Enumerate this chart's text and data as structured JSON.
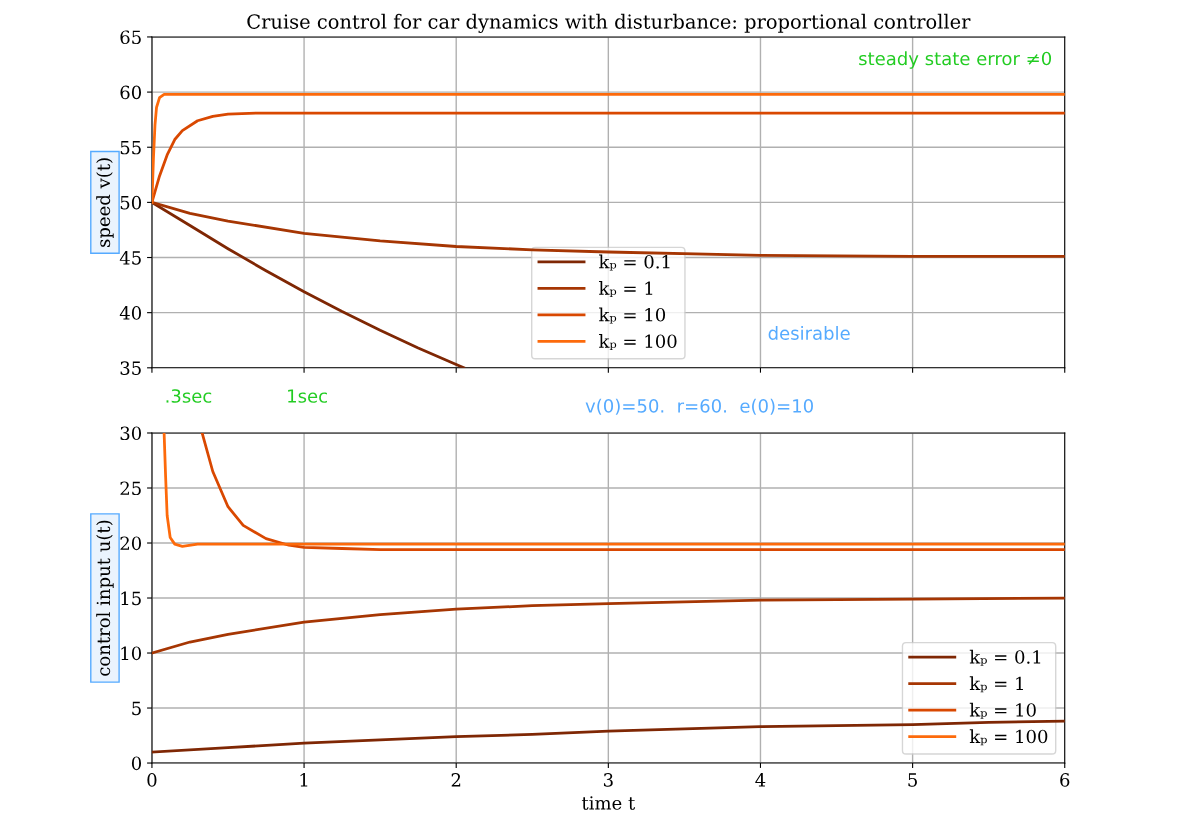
{
  "chart_data": [
    {
      "type": "line",
      "title": "Cruise control for car dynamics with disturbance: proportional controller",
      "ylabel": "speed v(t)",
      "xlim": [
        0,
        6
      ],
      "ylim": [
        35,
        65
      ],
      "xticks": [
        0,
        1,
        2,
        3,
        4,
        5,
        6
      ],
      "yticks": [
        35,
        40,
        45,
        50,
        55,
        60,
        65
      ],
      "tick_labels": "y",
      "grid": true,
      "legend": "bottom",
      "series": [
        {
          "name": "kₚ = 0.1",
          "color": "#7f2704",
          "x": [
            0,
            0.25,
            0.5,
            0.75,
            1,
            1.25,
            1.5,
            1.75,
            2,
            2.05
          ],
          "values": [
            50,
            47.9,
            45.8,
            43.8,
            41.9,
            40.1,
            38.4,
            36.8,
            35.3,
            35.0
          ]
        },
        {
          "name": "kₚ = 1",
          "color": "#a63603",
          "x": [
            0,
            0.25,
            0.5,
            1,
            1.5,
            2,
            2.5,
            3,
            4,
            5,
            6
          ],
          "values": [
            50,
            49.0,
            48.3,
            47.2,
            46.5,
            46.0,
            45.7,
            45.5,
            45.2,
            45.1,
            45.1
          ]
        },
        {
          "name": "kₚ = 10",
          "color": "#d94801",
          "x": [
            0,
            0.05,
            0.1,
            0.15,
            0.2,
            0.3,
            0.4,
            0.5,
            0.7,
            1,
            6
          ],
          "values": [
            50,
            52.4,
            54.3,
            55.7,
            56.5,
            57.4,
            57.8,
            58.0,
            58.1,
            58.1,
            58.1
          ]
        },
        {
          "name": "kₚ = 100",
          "color": "#fd6a0b",
          "x": [
            0,
            0.01,
            0.02,
            0.03,
            0.05,
            0.08,
            0.12,
            6
          ],
          "values": [
            50,
            54,
            57,
            58.6,
            59.5,
            59.8,
            59.8,
            59.8
          ]
        }
      ],
      "annotations": [
        "steady state error ≠0",
        "desirable",
        ".3sec",
        "1sec",
        "v(0)=50.  r=60.  e(0)=10"
      ]
    },
    {
      "type": "line",
      "xlabel": "time t",
      "ylabel": "control input u(t)",
      "xlim": [
        0,
        6
      ],
      "ylim": [
        0,
        30
      ],
      "xticks": [
        0,
        1,
        2,
        3,
        4,
        5,
        6
      ],
      "yticks": [
        0,
        5,
        10,
        15,
        20,
        25,
        30
      ],
      "grid": true,
      "legend": "bottom right",
      "series": [
        {
          "name": "kₚ = 0.1",
          "color": "#7f2704",
          "x": [
            0,
            0.5,
            1,
            1.5,
            2,
            2.5,
            3,
            3.5,
            4,
            4.5,
            5,
            5.5,
            6
          ],
          "values": [
            1.0,
            1.4,
            1.8,
            2.1,
            2.4,
            2.6,
            2.9,
            3.1,
            3.3,
            3.4,
            3.5,
            3.7,
            3.8
          ]
        },
        {
          "name": "kₚ = 1",
          "color": "#a63603",
          "x": [
            0,
            0.25,
            0.5,
            1,
            1.5,
            2,
            2.5,
            3,
            4,
            5,
            6
          ],
          "values": [
            10,
            11.0,
            11.7,
            12.8,
            13.5,
            14.0,
            14.3,
            14.5,
            14.8,
            14.9,
            15.0
          ]
        },
        {
          "name": "kₚ = 10",
          "color": "#d94801",
          "x": [
            0.33,
            0.4,
            0.5,
            0.6,
            0.75,
            0.9,
            1,
            1.25,
            1.5,
            2,
            6
          ],
          "values": [
            30,
            26.5,
            23.3,
            21.6,
            20.4,
            19.8,
            19.6,
            19.5,
            19.4,
            19.4,
            19.4
          ]
        },
        {
          "name": "kₚ = 100",
          "color": "#fd6a0b",
          "x": [
            0.08,
            0.09,
            0.1,
            0.12,
            0.15,
            0.2,
            0.3,
            0.5,
            6
          ],
          "values": [
            30,
            26,
            22.5,
            20.5,
            19.9,
            19.7,
            19.9,
            19.9,
            19.9
          ]
        }
      ]
    }
  ]
}
